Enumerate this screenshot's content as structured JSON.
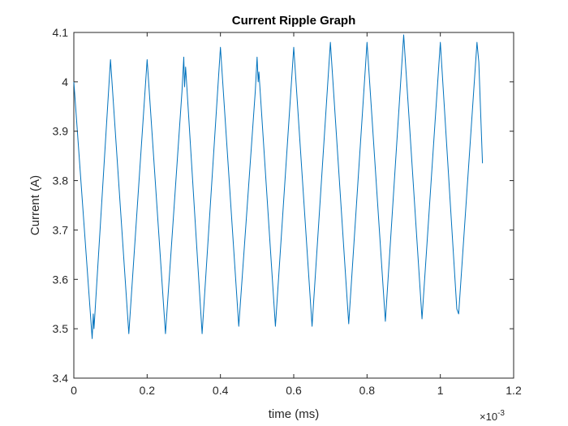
{
  "chart_data": {
    "type": "line",
    "title": "Current Ripple Graph",
    "xlabel": "time (ms)",
    "ylabel": "Current (A)",
    "x_exponent_label": "×10",
    "x_exponent_power": "-3",
    "xlim": [
      0,
      1.2
    ],
    "ylim": [
      3.4,
      4.1
    ],
    "x_scale_factor": 0.001,
    "grid": false,
    "legend": "none",
    "line_color": "#0072BD",
    "axis_color": "#262626",
    "x_ticks": [
      0,
      0.2,
      0.4,
      0.6,
      0.8,
      1,
      1.2
    ],
    "x_tick_labels": [
      "0",
      "0.2",
      "0.4",
      "0.6",
      "0.8",
      "1",
      "1.2"
    ],
    "y_ticks": [
      3.4,
      3.5,
      3.6,
      3.7,
      3.8,
      3.9,
      4.0,
      4.1
    ],
    "y_tick_labels": [
      "3.4",
      "3.5",
      "3.6",
      "3.7",
      "3.8",
      "3.9",
      "4",
      "4.1"
    ],
    "series": [
      {
        "x": [
          0.0,
          0.05,
          0.053,
          0.055,
          0.1,
          0.15,
          0.2,
          0.25,
          0.295,
          0.3,
          0.302,
          0.305,
          0.35,
          0.4,
          0.45,
          0.495,
          0.5,
          0.503,
          0.505,
          0.55,
          0.6,
          0.65,
          0.7,
          0.75,
          0.8,
          0.85,
          0.9,
          0.95,
          1.0,
          1.045,
          1.05,
          1.1,
          1.105,
          1.115
        ],
        "y": [
          4.0,
          3.48,
          3.53,
          3.5,
          4.045,
          3.49,
          4.045,
          3.49,
          3.98,
          4.05,
          3.99,
          4.03,
          3.49,
          4.07,
          3.505,
          3.98,
          4.05,
          4.0,
          4.02,
          3.505,
          4.07,
          3.505,
          4.08,
          3.51,
          4.08,
          3.515,
          4.095,
          3.52,
          4.08,
          3.54,
          3.53,
          4.08,
          4.04,
          3.835
        ]
      }
    ]
  }
}
